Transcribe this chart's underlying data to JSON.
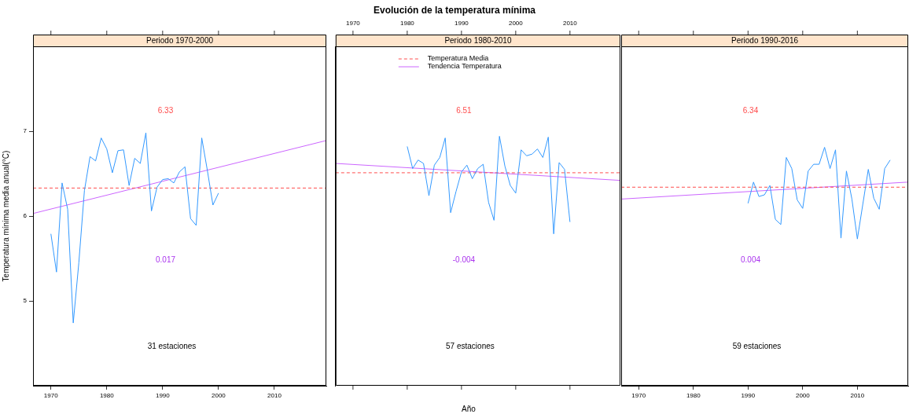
{
  "chart_data": [
    {
      "type": "line",
      "subtitle": "Periodo 1970-2000",
      "ylabel": "Temperatura mínima media anual(°C)",
      "xlim": [
        1966.8,
        2019.3
      ],
      "xticks": [
        1970,
        1980,
        1990,
        2000,
        2010
      ],
      "ylim": [
        4,
        8
      ],
      "yticks": [
        5,
        6,
        7
      ],
      "grid": false,
      "annotations": [
        "6.33",
        "0.017",
        "31 estaciones"
      ],
      "series": [
        {
          "color": "#3399ff",
          "x": [
            1970,
            1971,
            1972,
            1973,
            1974,
            1975,
            1976,
            1977,
            1978,
            1979,
            1980,
            1981,
            1982,
            1983,
            1984,
            1985,
            1986,
            1987,
            1988,
            1989,
            1990,
            1991,
            1992,
            1993,
            1994,
            1995,
            1996,
            1997,
            1998,
            1999,
            2000
          ],
          "values": [
            5.79,
            5.34,
            6.39,
            6.08,
            4.74,
            5.45,
            6.3,
            6.7,
            6.65,
            6.92,
            6.79,
            6.51,
            6.77,
            6.78,
            6.36,
            6.68,
            6.62,
            6.98,
            6.06,
            6.34,
            6.43,
            6.44,
            6.39,
            6.52,
            6.58,
            5.97,
            5.89,
            6.92,
            6.54,
            6.13,
            6.27
          ]
        },
        {
          "color": "#ff4d4d",
          "line_style": "dashed",
          "x": [
            1966.8,
            2019.3
          ],
          "values": [
            6.33,
            6.33
          ]
        },
        {
          "color": "#cc66ff",
          "x": [
            1966.8,
            2019.3
          ],
          "values": [
            6.03,
            6.89
          ]
        }
      ]
    },
    {
      "type": "line",
      "title": "Evolución de la temperatura mínima",
      "subtitle": "Periodo 1980-2010",
      "xlabel": "Año",
      "xlim": [
        1966.8,
        2019.3
      ],
      "xticks": [
        1970,
        1980,
        1990,
        2000,
        2010
      ],
      "ylim": [
        4,
        8
      ],
      "tick_labels": "x",
      "grid": false,
      "legend": "top",
      "annotations": [
        "6.51",
        "-0.004",
        "57 estaciones"
      ],
      "series": [
        {
          "color": "#3399ff",
          "x": [
            1980,
            1981,
            1982,
            1983,
            1984,
            1985,
            1986,
            1987,
            1988,
            1989,
            1990,
            1991,
            1992,
            1993,
            1994,
            1995,
            1996,
            1997,
            1998,
            1999,
            2000,
            2001,
            2002,
            2003,
            2004,
            2005,
            2006,
            2007,
            2008,
            2009,
            2010
          ],
          "values": [
            6.82,
            6.56,
            6.66,
            6.62,
            6.24,
            6.6,
            6.69,
            6.92,
            6.04,
            6.29,
            6.52,
            6.6,
            6.44,
            6.56,
            6.61,
            6.16,
            5.95,
            6.94,
            6.59,
            6.36,
            6.27,
            6.78,
            6.71,
            6.73,
            6.79,
            6.69,
            6.93,
            5.79,
            6.63,
            6.55,
            5.93
          ]
        },
        {
          "name": "Temperatura Media",
          "color": "#ff4d4d",
          "line_style": "dashed",
          "x": [
            1966.8,
            2019.3
          ],
          "values": [
            6.51,
            6.51
          ]
        },
        {
          "name": "Tendencia Temperatura",
          "color": "#cc66ff",
          "x": [
            1966.8,
            2019.3
          ],
          "values": [
            6.62,
            6.42
          ]
        }
      ]
    },
    {
      "type": "line",
      "subtitle": "Periodo 1990-2016",
      "xlim": [
        1966.8,
        2019.3
      ],
      "xticks": [
        1970,
        1980,
        1990,
        2000,
        2010
      ],
      "ylim": [
        4,
        8
      ],
      "tick_labels": "x",
      "grid": false,
      "annotations": [
        "6.34",
        "0.004",
        "59 estaciones"
      ],
      "series": [
        {
          "color": "#3399ff",
          "x": [
            1990,
            1991,
            1992,
            1993,
            1994,
            1995,
            1996,
            1997,
            1998,
            1999,
            2000,
            2001,
            2002,
            2003,
            2004,
            2005,
            2006,
            2007,
            2008,
            2009,
            2010,
            2011,
            2012,
            2013,
            2014,
            2015,
            2016
          ],
          "values": [
            6.15,
            6.4,
            6.23,
            6.25,
            6.36,
            5.96,
            5.9,
            6.69,
            6.56,
            6.19,
            6.09,
            6.53,
            6.61,
            6.61,
            6.81,
            6.56,
            6.78,
            5.74,
            6.53,
            6.2,
            5.73,
            6.14,
            6.55,
            6.21,
            6.08,
            6.56,
            6.66
          ]
        },
        {
          "color": "#ff4d4d",
          "line_style": "dashed",
          "x": [
            1966.8,
            2019.3
          ],
          "values": [
            6.34,
            6.34
          ]
        },
        {
          "color": "#cc66ff",
          "x": [
            1966.8,
            2019.3
          ],
          "values": [
            6.2,
            6.4
          ]
        }
      ]
    }
  ]
}
